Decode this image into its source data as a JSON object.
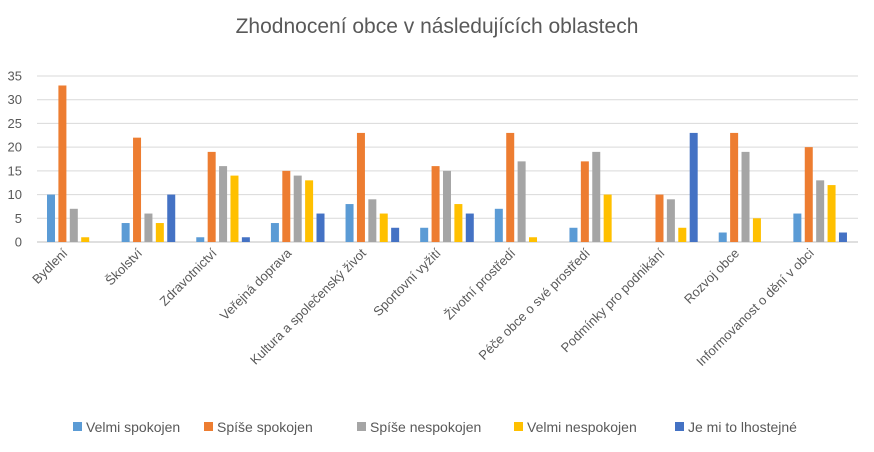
{
  "chart_data": {
    "type": "bar",
    "title": "Zhodnocení obce v následujících oblastech",
    "xlabel": "",
    "ylabel": "",
    "ylim": [
      0,
      35
    ],
    "yticks": [
      0,
      5,
      10,
      15,
      20,
      25,
      30,
      35
    ],
    "grid": true,
    "legend_position": "bottom",
    "categories": [
      "Bydlení",
      "Školství",
      "Zdravotnictví",
      "Veřejná doprava",
      "Kultura a společenský život",
      "Sportovní vyžití",
      "Životní prostředí",
      "Péče obce o své prostředí",
      "Podmínky pro podnikání",
      "Rozvoj obce",
      "Informovanost o dění v obci"
    ],
    "series": [
      {
        "name": "Velmi spokojen",
        "color": "#5b9bd5",
        "values": [
          10,
          4,
          1,
          4,
          8,
          3,
          7,
          3,
          0,
          2,
          6
        ]
      },
      {
        "name": "Spíše spokojen",
        "color": "#ed7d31",
        "values": [
          33,
          22,
          19,
          15,
          23,
          16,
          23,
          17,
          10,
          23,
          20
        ]
      },
      {
        "name": "Spíše nespokojen",
        "color": "#a5a5a5",
        "values": [
          7,
          6,
          16,
          14,
          9,
          15,
          17,
          19,
          9,
          19,
          13
        ]
      },
      {
        "name": "Velmi nespokojen",
        "color": "#ffc000",
        "values": [
          1,
          4,
          14,
          13,
          6,
          8,
          1,
          10,
          3,
          5,
          12
        ]
      },
      {
        "name": "Je mi to lhostejné",
        "color": "#4472c4",
        "values": [
          0,
          10,
          1,
          6,
          3,
          6,
          0,
          0,
          23,
          0,
          2
        ]
      }
    ]
  }
}
